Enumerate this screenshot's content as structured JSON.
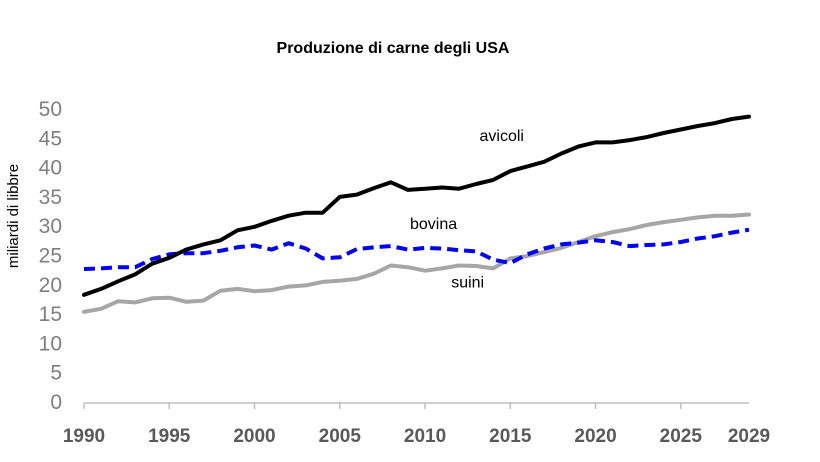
{
  "chart_data": {
    "type": "line",
    "title": "Produzione di carne degli USA",
    "xlabel": "",
    "ylabel": "miliardi di libbre",
    "xlim": [
      1990,
      2029
    ],
    "ylim": [
      0,
      50
    ],
    "yticks": [
      0,
      5,
      10,
      15,
      20,
      25,
      30,
      35,
      40,
      45,
      50
    ],
    "xticks": [
      1990,
      1995,
      2000,
      2005,
      2010,
      2015,
      2020,
      2025,
      2029
    ],
    "grid": false,
    "legend": "none",
    "x": [
      1990,
      1991,
      1992,
      1993,
      1994,
      1995,
      1996,
      1997,
      1998,
      1999,
      2000,
      2001,
      2002,
      2003,
      2004,
      2005,
      2006,
      2007,
      2008,
      2009,
      2010,
      2011,
      2012,
      2013,
      2014,
      2015,
      2016,
      2017,
      2018,
      2019,
      2020,
      2021,
      2022,
      2023,
      2024,
      2025,
      2026,
      2027,
      2028,
      2029
    ],
    "series": [
      {
        "name": "avicoli",
        "color": "#000000",
        "dash": "solid",
        "values": [
          18.3,
          19.3,
          20.6,
          21.8,
          23.6,
          24.6,
          26.0,
          26.9,
          27.6,
          29.3,
          29.9,
          30.9,
          31.8,
          32.3,
          32.3,
          35.0,
          35.4,
          36.5,
          37.5,
          36.2,
          36.4,
          36.6,
          36.4,
          37.2,
          37.9,
          39.4,
          40.2,
          41.0,
          42.4,
          43.6,
          44.3,
          44.3,
          44.7,
          45.2,
          45.9,
          46.5,
          47.1,
          47.6,
          48.3,
          48.7
        ]
      },
      {
        "name": "bovina",
        "color": "#0000ff",
        "dash": "dashed",
        "values": [
          22.7,
          22.8,
          23.0,
          23.0,
          24.4,
          25.2,
          25.4,
          25.4,
          25.8,
          26.4,
          26.7,
          26.0,
          27.1,
          26.2,
          24.5,
          24.7,
          26.1,
          26.4,
          26.6,
          26.0,
          26.3,
          26.2,
          25.9,
          25.7,
          24.3,
          23.7,
          25.2,
          26.2,
          26.9,
          27.2,
          27.6,
          27.3,
          26.6,
          26.8,
          26.9,
          27.3,
          27.9,
          28.3,
          28.9,
          29.4
        ]
      },
      {
        "name": "suini",
        "color": "#a6a6a6",
        "dash": "solid",
        "values": [
          15.4,
          15.9,
          17.2,
          17.0,
          17.7,
          17.8,
          17.1,
          17.3,
          19.0,
          19.3,
          18.9,
          19.1,
          19.7,
          19.9,
          20.5,
          20.7,
          21.0,
          21.9,
          23.3,
          23.0,
          22.4,
          22.8,
          23.3,
          23.2,
          22.8,
          24.5,
          24.9,
          25.6,
          26.3,
          27.3,
          28.3,
          29.0,
          29.5,
          30.2,
          30.7,
          31.1,
          31.5,
          31.8,
          31.8,
          32.0
        ]
      }
    ],
    "annotations": [
      {
        "text": "avicoli",
        "x": 2014.5,
        "y": 44.5
      },
      {
        "text": "bovina",
        "x": 2010.5,
        "y": 29.5
      },
      {
        "text": "suini",
        "x": 2012.5,
        "y": 19.5
      }
    ]
  }
}
